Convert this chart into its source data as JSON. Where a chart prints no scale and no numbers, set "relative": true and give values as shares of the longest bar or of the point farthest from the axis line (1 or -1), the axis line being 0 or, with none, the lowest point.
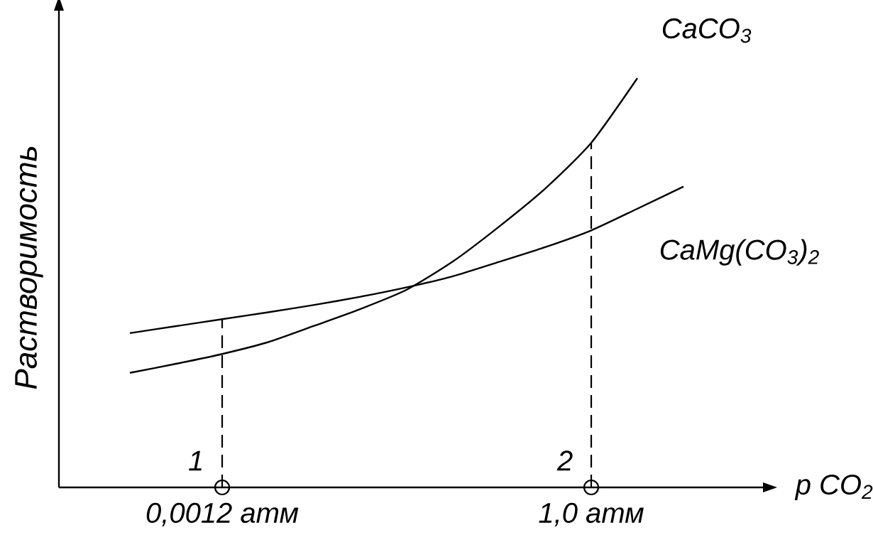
{
  "chart_data": {
    "type": "line",
    "relative": true,
    "xlabel": "p CO$_{2}$",
    "ylabel": "Растворимость",
    "categories": [
      null,
      null,
      "0,0012 атм",
      null,
      null,
      null,
      null,
      null,
      null,
      null,
      "1,0 атм",
      null,
      null
    ],
    "series": [
      {
        "name": "CaCO$_{3}$",
        "color": "#000000",
        "values": [
          0.28,
          0.302,
          0.326,
          0.355,
          0.395,
          0.436,
          0.483,
          0.552,
          0.637,
          0.73,
          0.842,
          1.0,
          null
        ]
      },
      {
        "name": "CaMg(CO$_{3}$)$_{2}$",
        "color": "#000000",
        "values": [
          0.377,
          0.394,
          0.411,
          0.428,
          0.446,
          0.466,
          0.489,
          0.516,
          0.551,
          0.587,
          0.628,
          0.681,
          0.735
        ]
      }
    ],
    "ref_lines": [
      {
        "axis": "x",
        "value": "0,0012 атм",
        "label": "1",
        "line_style": "dashed"
      },
      {
        "axis": "x",
        "value": "1,0 атм",
        "label": "2",
        "line_style": "dashed"
      }
    ],
    "line_style": "solid"
  }
}
